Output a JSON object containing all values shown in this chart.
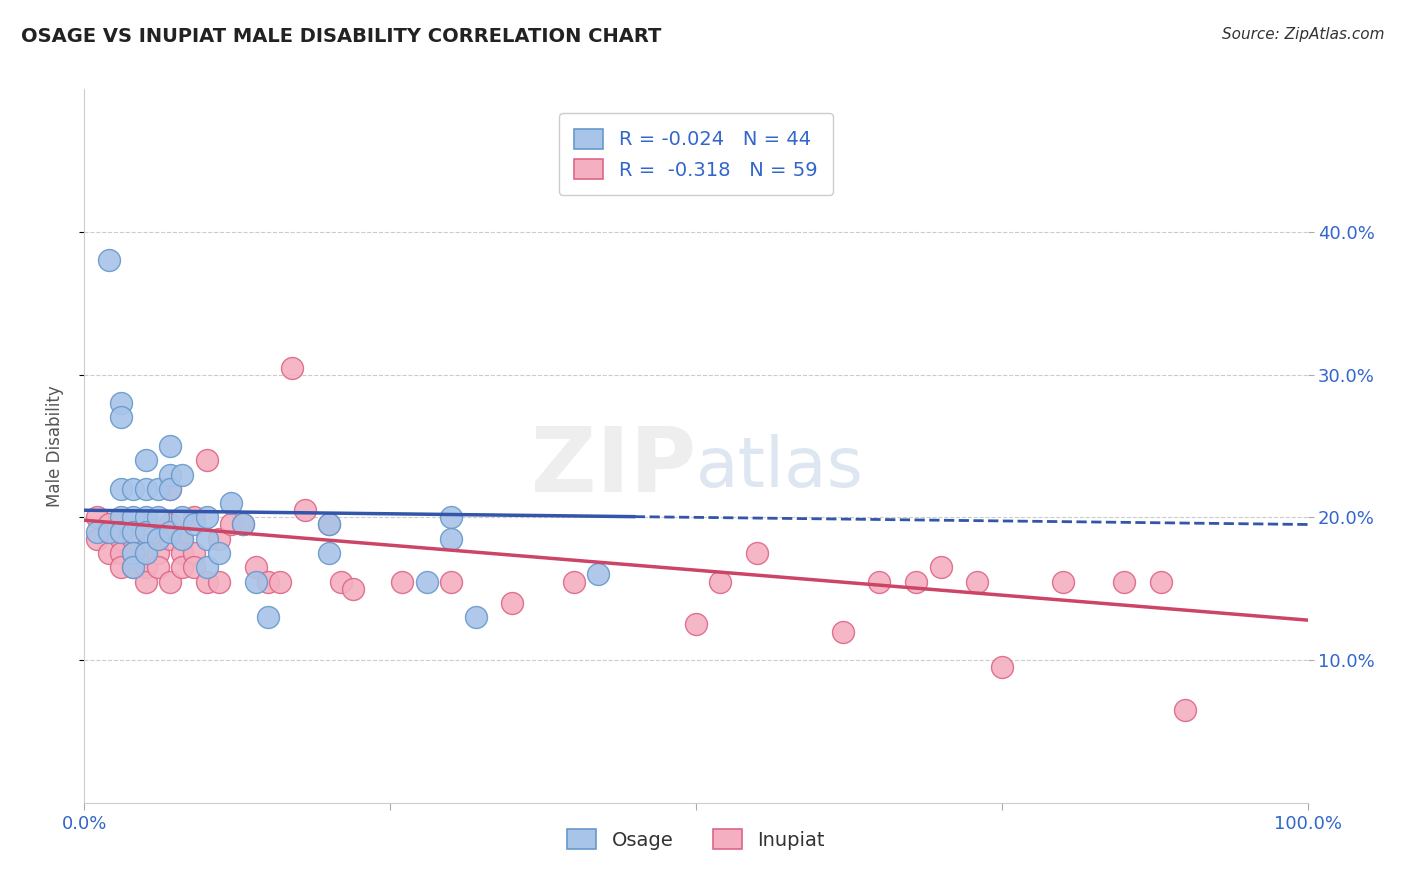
{
  "title": "OSAGE VS INUPIAT MALE DISABILITY CORRELATION CHART",
  "source": "Source: ZipAtlas.com",
  "ylabel": "Male Disability",
  "osage_R": -0.024,
  "osage_N": 44,
  "inupiat_R": -0.318,
  "inupiat_N": 59,
  "xlim": [
    0.0,
    1.0
  ],
  "ylim": [
    0.0,
    0.5
  ],
  "osage_color": "#a8c4e8",
  "inupiat_color": "#f4afc0",
  "osage_edge_color": "#6699cc",
  "inupiat_edge_color": "#dd6688",
  "osage_line_color": "#3355aa",
  "inupiat_line_color": "#cc4466",
  "grid_color": "#cccccc",
  "osage_x": [
    0.01,
    0.02,
    0.02,
    0.03,
    0.03,
    0.03,
    0.03,
    0.03,
    0.04,
    0.04,
    0.04,
    0.04,
    0.04,
    0.05,
    0.05,
    0.05,
    0.05,
    0.05,
    0.06,
    0.06,
    0.06,
    0.07,
    0.07,
    0.07,
    0.07,
    0.08,
    0.08,
    0.08,
    0.09,
    0.1,
    0.1,
    0.1,
    0.11,
    0.12,
    0.13,
    0.14,
    0.15,
    0.2,
    0.2,
    0.28,
    0.3,
    0.3,
    0.32,
    0.42
  ],
  "osage_y": [
    0.19,
    0.38,
    0.19,
    0.28,
    0.27,
    0.22,
    0.2,
    0.19,
    0.22,
    0.2,
    0.19,
    0.175,
    0.165,
    0.24,
    0.22,
    0.2,
    0.19,
    0.175,
    0.22,
    0.2,
    0.185,
    0.25,
    0.23,
    0.22,
    0.19,
    0.23,
    0.2,
    0.185,
    0.195,
    0.2,
    0.185,
    0.165,
    0.175,
    0.21,
    0.195,
    0.155,
    0.13,
    0.195,
    0.175,
    0.155,
    0.2,
    0.185,
    0.13,
    0.16
  ],
  "inupiat_x": [
    0.01,
    0.01,
    0.02,
    0.02,
    0.03,
    0.03,
    0.03,
    0.03,
    0.04,
    0.04,
    0.04,
    0.05,
    0.05,
    0.05,
    0.05,
    0.06,
    0.06,
    0.06,
    0.07,
    0.07,
    0.07,
    0.07,
    0.08,
    0.08,
    0.08,
    0.09,
    0.09,
    0.09,
    0.1,
    0.1,
    0.11,
    0.11,
    0.12,
    0.13,
    0.14,
    0.15,
    0.16,
    0.17,
    0.18,
    0.2,
    0.21,
    0.22,
    0.26,
    0.3,
    0.35,
    0.4,
    0.5,
    0.52,
    0.55,
    0.62,
    0.65,
    0.68,
    0.7,
    0.73,
    0.75,
    0.8,
    0.85,
    0.88,
    0.9
  ],
  "inupiat_y": [
    0.2,
    0.185,
    0.195,
    0.175,
    0.195,
    0.185,
    0.175,
    0.165,
    0.185,
    0.175,
    0.165,
    0.195,
    0.175,
    0.165,
    0.155,
    0.185,
    0.175,
    0.165,
    0.22,
    0.195,
    0.185,
    0.155,
    0.185,
    0.175,
    0.165,
    0.2,
    0.175,
    0.165,
    0.24,
    0.155,
    0.185,
    0.155,
    0.195,
    0.195,
    0.165,
    0.155,
    0.155,
    0.305,
    0.205,
    0.195,
    0.155,
    0.15,
    0.155,
    0.155,
    0.14,
    0.155,
    0.125,
    0.155,
    0.175,
    0.12,
    0.155,
    0.155,
    0.165,
    0.155,
    0.095,
    0.155,
    0.155,
    0.155,
    0.065
  ]
}
